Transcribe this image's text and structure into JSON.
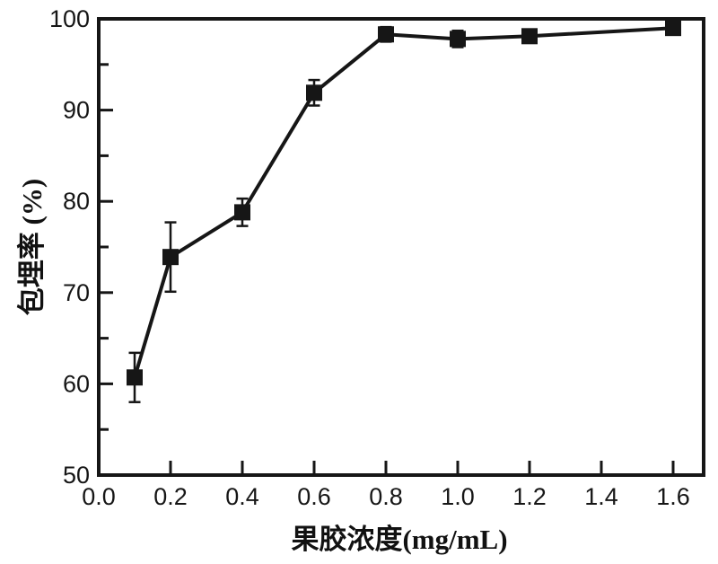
{
  "figure": {
    "background": "#ffffff"
  },
  "chart_data": {
    "type": "line",
    "title": "",
    "xlabel": "果胶浓度(mg/mL)",
    "ylabel": "包埋率 (%)",
    "axis_color": "#161616",
    "grid": false,
    "legend": null,
    "xlim": [
      0,
      1.685
    ],
    "ylim": [
      50,
      100
    ],
    "x_tick_values": [
      0.0,
      0.2,
      0.4,
      0.6,
      0.8,
      1.0,
      1.2,
      1.4,
      1.6
    ],
    "x_ticks": [
      "0.0",
      "0.2",
      "0.4",
      "0.6",
      "0.8",
      "1.0",
      "1.2",
      "1.4",
      "1.6"
    ],
    "y_tick_values": [
      50,
      60,
      70,
      80,
      90,
      100
    ],
    "y_ticks": [
      "50",
      "60",
      "70",
      "80",
      "90",
      "100"
    ],
    "y_minor_tick_values": [
      55,
      65,
      75,
      85,
      95
    ],
    "series": [
      {
        "name": "包埋率",
        "marker": "square",
        "color": "#161616",
        "points": [
          {
            "x": 0.1,
            "y": 60.7,
            "err": 2.7
          },
          {
            "x": 0.2,
            "y": 73.9,
            "err": 3.8
          },
          {
            "x": 0.4,
            "y": 78.8,
            "err": 1.5
          },
          {
            "x": 0.6,
            "y": 91.9,
            "err": 1.4
          },
          {
            "x": 0.8,
            "y": 98.3,
            "err": 0.8
          },
          {
            "x": 1.0,
            "y": 97.8,
            "err": 0.9
          },
          {
            "x": 1.2,
            "y": 98.1,
            "err": 0.6
          },
          {
            "x": 1.6,
            "y": 99.0,
            "err": 0.5
          }
        ]
      }
    ]
  }
}
